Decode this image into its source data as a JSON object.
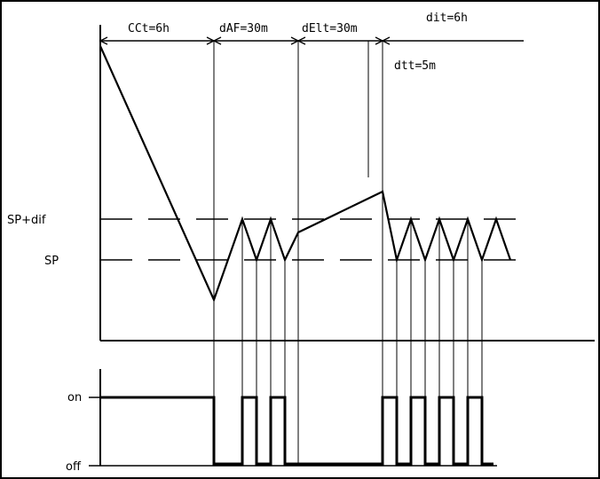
{
  "labels": {
    "cct": "CCt=6h",
    "daf": "dAF=30m",
    "delt": "dElt=30m",
    "dit": "dit=6h",
    "dtt": "dtt=5m",
    "sp_dif": "SP+dif",
    "sp": "SP",
    "on": "on",
    "off": "off"
  },
  "colors": {
    "line": "#000000",
    "background": "#ffffff"
  }
}
